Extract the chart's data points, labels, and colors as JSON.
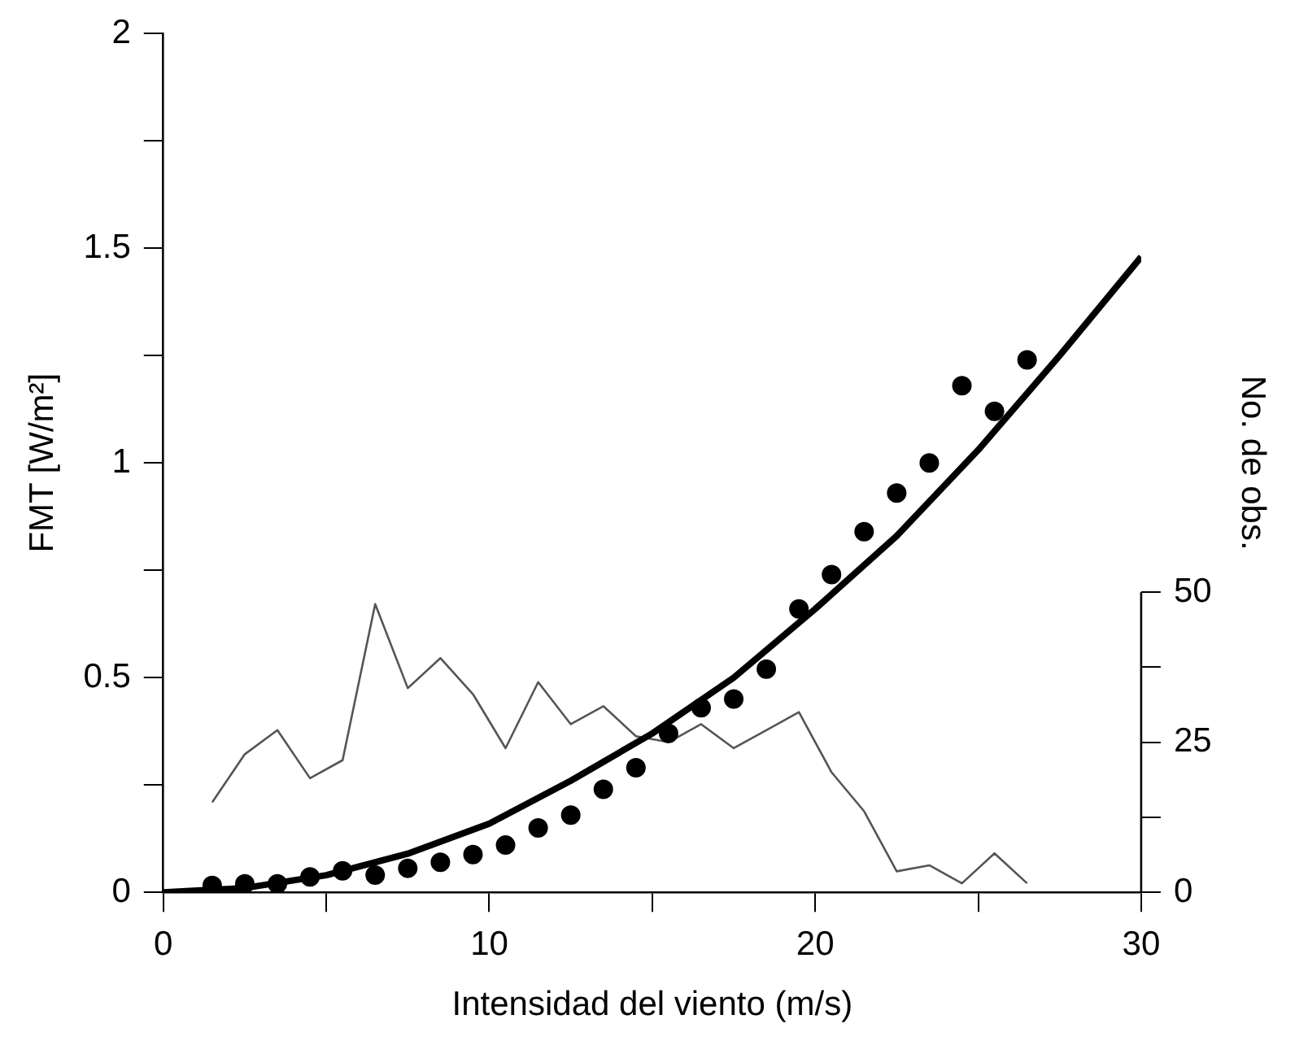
{
  "chart_data": {
    "type": "scatter",
    "xlabel": "Intensidad del viento (m/s)",
    "ylabel": "FMT [W/m²]",
    "y2label": "No. de obs.",
    "xlim": [
      0,
      30
    ],
    "xticks": [
      0,
      {
        "value": 5,
        "label": null
      },
      10,
      {
        "value": 15,
        "label": null
      },
      20,
      {
        "value": 25,
        "label": null
      },
      30
    ],
    "ylim": [
      0,
      2
    ],
    "yticks": [
      0,
      {
        "value": 0.25,
        "label": null
      },
      0.5,
      {
        "value": 0.75,
        "label": null
      },
      1,
      {
        "value": 1.25,
        "label": null
      },
      1.5,
      {
        "value": 1.75,
        "label": null
      },
      2
    ],
    "y2lim": [
      0,
      143
    ],
    "y2ticks": [
      0,
      {
        "value": 12.5,
        "label": null
      },
      25,
      {
        "value": 37.5,
        "label": null
      },
      50
    ],
    "grid": false,
    "legend": false,
    "series": [
      {
        "type": "scatter",
        "color": "#000000",
        "marker": "circle",
        "x": [
          1.5,
          2.5,
          3.5,
          4.5,
          5.5,
          6.5,
          7.5,
          8.5,
          9.5,
          10.5,
          11.5,
          12.5,
          13.5,
          14.5,
          15.5,
          16.5,
          17.5,
          18.5,
          19.5,
          20.5,
          21.5,
          22.5,
          23.5,
          24.5,
          25.5,
          26.5
        ],
        "values": [
          0.016,
          0.02,
          0.02,
          0.036,
          0.05,
          0.04,
          0.056,
          0.07,
          0.088,
          0.11,
          0.15,
          0.18,
          0.24,
          0.29,
          0.37,
          0.43,
          0.45,
          0.52,
          0.66,
          0.74,
          0.84,
          0.93,
          1.0,
          1.18,
          1.12,
          1.24
        ]
      },
      {
        "type": "line",
        "color": "#000000",
        "marker": "none",
        "x": [
          0,
          2.5,
          5,
          7.5,
          10,
          12.5,
          15,
          17.5,
          20,
          22.5,
          25,
          27.5,
          30
        ],
        "values": [
          0,
          0.01,
          0.04,
          0.09,
          0.16,
          0.26,
          0.37,
          0.5,
          0.66,
          0.83,
          1.03,
          1.25,
          1.48
        ]
      },
      {
        "type": "line",
        "axis": "y2",
        "color": "#555555",
        "marker": "none",
        "x": [
          1.5,
          2.5,
          3.5,
          4.5,
          5.5,
          6.5,
          7.5,
          8.5,
          9.5,
          10.5,
          11.5,
          12.5,
          13.5,
          14.5,
          15.5,
          16.5,
          17.5,
          18.5,
          19.5,
          20.5,
          21.5,
          22.5,
          23.5,
          24.5,
          25.5,
          26.5
        ],
        "values": [
          15,
          23,
          27,
          19,
          22,
          48,
          34,
          39,
          33,
          24,
          35,
          28,
          31,
          26,
          25,
          28,
          24,
          27,
          30,
          20,
          13.5,
          3.5,
          4.5,
          1.5,
          6.5,
          1.5
        ]
      }
    ]
  }
}
